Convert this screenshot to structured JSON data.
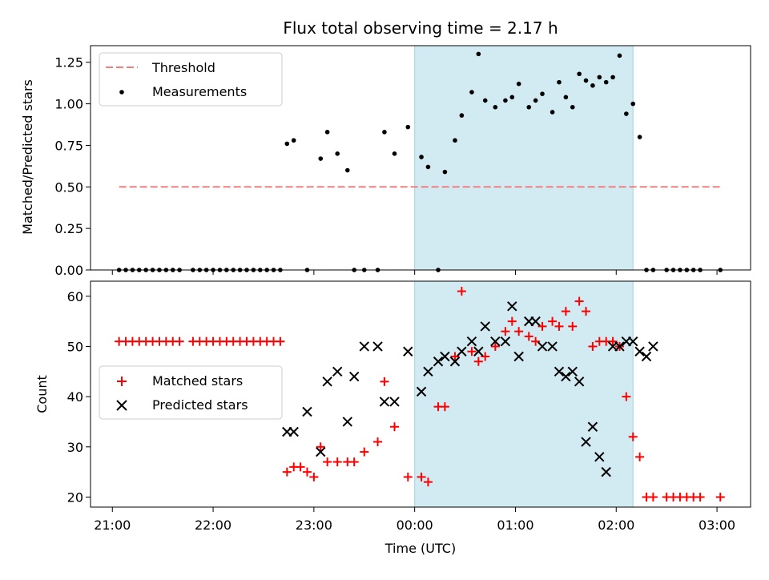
{
  "chart_data": [
    {
      "type": "scatter",
      "title": "Flux total observing time = 2.17 h",
      "xlabel": "",
      "ylabel": "Matched/Predicted stars",
      "ylim": [
        0,
        1.35
      ],
      "y_ticks": [
        "0.00",
        "0.25",
        "0.50",
        "0.75",
        "1.00",
        "1.25"
      ],
      "y_tick_values": [
        0,
        0.25,
        0.5,
        0.75,
        1.0,
        1.25
      ],
      "legend": "top-left",
      "shaded_interval": {
        "start": 180,
        "end": 310,
        "color": "#add8e6"
      },
      "series": [
        {
          "name": "Threshold",
          "style": "dashed-line",
          "color": "#f08080",
          "x": [
            4,
            362
          ],
          "y": [
            0.5,
            0.5
          ]
        },
        {
          "name": "Measurements",
          "style": "dot",
          "color": "#000000",
          "x": [
            4,
            8,
            12,
            16,
            20,
            24,
            28,
            32,
            36,
            40,
            48,
            52,
            56,
            60,
            64,
            68,
            72,
            76,
            80,
            84,
            88,
            92,
            96,
            100,
            104,
            108,
            116,
            124,
            128,
            134,
            140,
            144,
            150,
            158,
            162,
            168,
            176,
            184,
            188,
            194,
            198,
            204,
            208,
            214,
            218,
            222,
            228,
            234,
            238,
            242,
            248,
            252,
            256,
            262,
            266,
            270,
            274,
            278,
            282,
            286,
            290,
            294,
            298,
            302,
            306,
            310,
            314,
            318,
            322,
            330,
            334,
            338,
            342,
            346,
            350,
            362
          ],
          "y": [
            0,
            0,
            0,
            0,
            0,
            0,
            0,
            0,
            0,
            0,
            0,
            0,
            0,
            0,
            0,
            0,
            0,
            0,
            0,
            0,
            0,
            0,
            0,
            0,
            0.76,
            0.78,
            0,
            0.67,
            0.83,
            0.7,
            0.6,
            0,
            0,
            0,
            0.83,
            0.7,
            0.86,
            0.68,
            0.62,
            0,
            0.59,
            0.78,
            0.93,
            1.07,
            1.3,
            1.02,
            0.98,
            1.02,
            1.04,
            1.12,
            0.98,
            1.02,
            1.06,
            0.95,
            1.13,
            1.04,
            0.98,
            1.18,
            1.14,
            1.11,
            1.16,
            1.13,
            1.16,
            1.29,
            0.94,
            1.0,
            0.8,
            0,
            0,
            0,
            0,
            0,
            0,
            0,
            0,
            0
          ]
        }
      ]
    },
    {
      "type": "scatter",
      "title": "",
      "xlabel": "Time (UTC)",
      "ylabel": "Count",
      "ylim": [
        18,
        63
      ],
      "xlim": [
        -13,
        380
      ],
      "x_ticks": [
        "21:00",
        "22:00",
        "23:00",
        "00:00",
        "01:00",
        "02:00",
        "03:00"
      ],
      "x_tick_values": [
        0,
        60,
        120,
        180,
        240,
        300,
        360
      ],
      "y_ticks": [
        "20",
        "30",
        "40",
        "50",
        "60"
      ],
      "y_tick_values": [
        20,
        30,
        40,
        50,
        60
      ],
      "legend": "center-left",
      "shaded_interval": {
        "start": 180,
        "end": 310,
        "color": "#add8e6"
      },
      "series": [
        {
          "name": "Matched stars",
          "style": "plus",
          "color": "#ff0000",
          "x": [
            4,
            8,
            12,
            16,
            20,
            24,
            28,
            32,
            36,
            40,
            48,
            52,
            56,
            60,
            64,
            68,
            72,
            76,
            80,
            84,
            88,
            92,
            96,
            100,
            104,
            108,
            112,
            116,
            120,
            124,
            128,
            134,
            140,
            144,
            150,
            158,
            162,
            168,
            176,
            184,
            188,
            194,
            198,
            204,
            208,
            214,
            218,
            222,
            228,
            234,
            238,
            242,
            248,
            252,
            256,
            262,
            266,
            270,
            274,
            278,
            282,
            286,
            290,
            294,
            298,
            302,
            306,
            310,
            314,
            318,
            322,
            330,
            334,
            338,
            342,
            346,
            350,
            362
          ],
          "y": [
            51,
            51,
            51,
            51,
            51,
            51,
            51,
            51,
            51,
            51,
            51,
            51,
            51,
            51,
            51,
            51,
            51,
            51,
            51,
            51,
            51,
            51,
            51,
            51,
            25,
            26,
            26,
            25,
            24,
            30,
            27,
            27,
            27,
            27,
            29,
            31,
            43,
            34,
            24,
            24,
            23,
            38,
            38,
            48,
            61,
            49,
            47,
            48,
            50,
            53,
            55,
            53,
            52,
            51,
            54,
            55,
            54,
            57,
            54,
            59,
            57,
            50,
            51,
            51,
            51,
            50,
            40,
            32,
            28,
            20,
            20,
            20,
            20,
            20,
            20,
            20,
            20,
            20
          ]
        },
        {
          "name": "Predicted stars",
          "style": "x",
          "color": "#000000",
          "x": [
            104,
            108,
            116,
            124,
            128,
            134,
            140,
            144,
            150,
            158,
            162,
            168,
            176,
            184,
            188,
            194,
            198,
            204,
            208,
            214,
            218,
            222,
            228,
            234,
            238,
            242,
            248,
            252,
            256,
            262,
            266,
            270,
            274,
            278,
            282,
            286,
            290,
            294,
            298,
            302,
            306,
            310,
            314,
            318,
            322
          ],
          "y": [
            33,
            33,
            37,
            29,
            43,
            45,
            35,
            44,
            50,
            50,
            39,
            39,
            49,
            41,
            45,
            47,
            48,
            47,
            49,
            51,
            49,
            54,
            51,
            51,
            58,
            48,
            55,
            55,
            50,
            50,
            45,
            44,
            45,
            43,
            31,
            34,
            28,
            25,
            50,
            50,
            51,
            51,
            49,
            48,
            50
          ]
        }
      ]
    }
  ]
}
